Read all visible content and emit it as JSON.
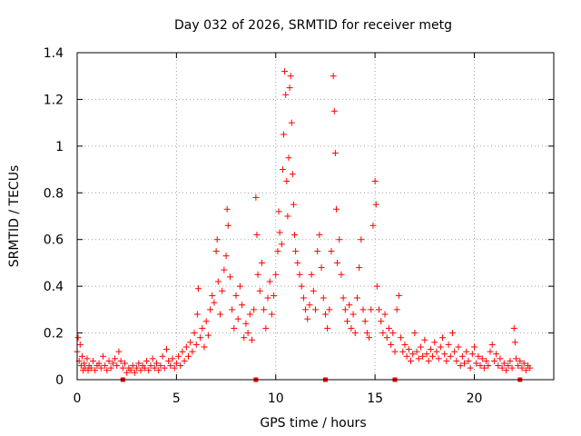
{
  "chart_data": {
    "type": "scatter",
    "title": "Day 032 of 2026, SRMTID for receiver metg",
    "xlabel": "GPS time / hours",
    "ylabel": "SRMTID / TECUs",
    "xlim": [
      0,
      24
    ],
    "ylim": [
      0,
      1.4
    ],
    "xticks": [
      0,
      5,
      10,
      15,
      20
    ],
    "xtick_labels": [
      "0",
      "5",
      "10",
      "15",
      "20"
    ],
    "yticks": [
      0,
      0.2,
      0.4,
      0.6,
      0.8,
      1.0,
      1.2,
      1.4
    ],
    "ytick_labels": [
      "0",
      "0.2",
      "0.4",
      "0.6",
      "0.8",
      "1",
      "1.2",
      "1.4"
    ],
    "grid": true,
    "marker": "plus",
    "color": "#ff0000",
    "series": [
      {
        "name": "SRMTID",
        "points": [
          [
            0.0,
            0.12
          ],
          [
            0.05,
            0.18
          ],
          [
            0.1,
            0.08
          ],
          [
            0.15,
            0.15
          ],
          [
            0.2,
            0.06
          ],
          [
            0.25,
            0.1
          ],
          [
            0.3,
            0.04
          ],
          [
            0.35,
            0.07
          ],
          [
            0.4,
            0.05
          ],
          [
            0.5,
            0.09
          ],
          [
            0.55,
            0.04
          ],
          [
            0.6,
            0.06
          ],
          [
            0.7,
            0.05
          ],
          [
            0.8,
            0.08
          ],
          [
            0.9,
            0.04
          ],
          [
            1.0,
            0.06
          ],
          [
            1.1,
            0.07
          ],
          [
            1.2,
            0.05
          ],
          [
            1.3,
            0.1
          ],
          [
            1.4,
            0.06
          ],
          [
            1.5,
            0.04
          ],
          [
            1.6,
            0.08
          ],
          [
            1.7,
            0.05
          ],
          [
            1.8,
            0.07
          ],
          [
            1.9,
            0.09
          ],
          [
            2.0,
            0.06
          ],
          [
            2.1,
            0.12
          ],
          [
            2.2,
            0.08
          ],
          [
            2.3,
            0.05
          ],
          [
            2.4,
            0.07
          ],
          [
            2.5,
            0.03
          ],
          [
            2.6,
            0.05
          ],
          [
            2.7,
            0.04
          ],
          [
            2.8,
            0.06
          ],
          [
            2.9,
            0.03
          ],
          [
            3.0,
            0.05
          ],
          [
            3.1,
            0.07
          ],
          [
            3.2,
            0.04
          ],
          [
            3.3,
            0.06
          ],
          [
            3.4,
            0.05
          ],
          [
            3.5,
            0.08
          ],
          [
            3.6,
            0.04
          ],
          [
            3.7,
            0.06
          ],
          [
            3.8,
            0.09
          ],
          [
            3.9,
            0.05
          ],
          [
            4.0,
            0.07
          ],
          [
            4.1,
            0.04
          ],
          [
            4.2,
            0.06
          ],
          [
            4.3,
            0.1
          ],
          [
            4.4,
            0.05
          ],
          [
            4.5,
            0.13
          ],
          [
            4.6,
            0.08
          ],
          [
            4.7,
            0.06
          ],
          [
            4.8,
            0.09
          ],
          [
            4.9,
            0.05
          ],
          [
            5.0,
            0.07
          ],
          [
            5.1,
            0.1
          ],
          [
            5.2,
            0.06
          ],
          [
            5.3,
            0.12
          ],
          [
            5.4,
            0.08
          ],
          [
            5.5,
            0.14
          ],
          [
            5.6,
            0.1
          ],
          [
            5.7,
            0.16
          ],
          [
            5.8,
            0.12
          ],
          [
            5.9,
            0.2
          ],
          [
            6.0,
            0.15
          ],
          [
            6.05,
            0.28
          ],
          [
            6.1,
            0.39
          ],
          [
            6.2,
            0.18
          ],
          [
            6.3,
            0.22
          ],
          [
            6.4,
            0.14
          ],
          [
            6.5,
            0.25
          ],
          [
            6.6,
            0.19
          ],
          [
            6.7,
            0.3
          ],
          [
            6.8,
            0.36
          ],
          [
            6.9,
            0.33
          ],
          [
            7.0,
            0.55
          ],
          [
            7.05,
            0.6
          ],
          [
            7.1,
            0.42
          ],
          [
            7.2,
            0.28
          ],
          [
            7.3,
            0.38
          ],
          [
            7.4,
            0.47
          ],
          [
            7.5,
            0.53
          ],
          [
            7.55,
            0.73
          ],
          [
            7.6,
            0.66
          ],
          [
            7.7,
            0.44
          ],
          [
            7.8,
            0.3
          ],
          [
            7.9,
            0.22
          ],
          [
            8.0,
            0.36
          ],
          [
            8.1,
            0.26
          ],
          [
            8.2,
            0.4
          ],
          [
            8.3,
            0.32
          ],
          [
            8.4,
            0.18
          ],
          [
            8.5,
            0.24
          ],
          [
            8.6,
            0.2
          ],
          [
            8.7,
            0.28
          ],
          [
            8.8,
            0.17
          ],
          [
            8.9,
            0.3
          ],
          [
            9.0,
            0.78
          ],
          [
            9.05,
            0.62
          ],
          [
            9.1,
            0.45
          ],
          [
            9.2,
            0.38
          ],
          [
            9.3,
            0.5
          ],
          [
            9.4,
            0.3
          ],
          [
            9.5,
            0.22
          ],
          [
            9.6,
            0.35
          ],
          [
            9.7,
            0.42
          ],
          [
            9.8,
            0.28
          ],
          [
            9.9,
            0.36
          ],
          [
            10.0,
            0.45
          ],
          [
            10.1,
            0.55
          ],
          [
            10.15,
            0.72
          ],
          [
            10.2,
            0.63
          ],
          [
            10.3,
            0.58
          ],
          [
            10.35,
            0.9
          ],
          [
            10.4,
            1.05
          ],
          [
            10.45,
            1.32
          ],
          [
            10.5,
            1.22
          ],
          [
            10.55,
            0.85
          ],
          [
            10.6,
            0.7
          ],
          [
            10.65,
            0.95
          ],
          [
            10.7,
            1.25
          ],
          [
            10.75,
            1.3
          ],
          [
            10.8,
            1.1
          ],
          [
            10.85,
            0.88
          ],
          [
            10.9,
            0.75
          ],
          [
            10.95,
            0.62
          ],
          [
            11.0,
            0.55
          ],
          [
            11.1,
            0.5
          ],
          [
            11.2,
            0.45
          ],
          [
            11.3,
            0.4
          ],
          [
            11.4,
            0.35
          ],
          [
            11.5,
            0.3
          ],
          [
            11.6,
            0.26
          ],
          [
            11.7,
            0.32
          ],
          [
            11.8,
            0.45
          ],
          [
            11.9,
            0.38
          ],
          [
            12.0,
            0.3
          ],
          [
            12.1,
            0.55
          ],
          [
            12.2,
            0.62
          ],
          [
            12.3,
            0.48
          ],
          [
            12.4,
            0.35
          ],
          [
            12.5,
            0.28
          ],
          [
            12.6,
            0.22
          ],
          [
            12.7,
            0.3
          ],
          [
            12.8,
            0.55
          ],
          [
            12.9,
            1.3
          ],
          [
            12.95,
            1.15
          ],
          [
            13.0,
            0.97
          ],
          [
            13.05,
            0.73
          ],
          [
            13.1,
            0.5
          ],
          [
            13.2,
            0.6
          ],
          [
            13.3,
            0.45
          ],
          [
            13.4,
            0.35
          ],
          [
            13.5,
            0.3
          ],
          [
            13.6,
            0.25
          ],
          [
            13.7,
            0.32
          ],
          [
            13.8,
            0.22
          ],
          [
            13.9,
            0.28
          ],
          [
            14.0,
            0.2
          ],
          [
            14.1,
            0.35
          ],
          [
            14.2,
            0.48
          ],
          [
            14.3,
            0.6
          ],
          [
            14.4,
            0.3
          ],
          [
            14.5,
            0.25
          ],
          [
            14.6,
            0.2
          ],
          [
            14.7,
            0.18
          ],
          [
            14.8,
            0.3
          ],
          [
            14.9,
            0.66
          ],
          [
            15.0,
            0.85
          ],
          [
            15.05,
            0.75
          ],
          [
            15.1,
            0.4
          ],
          [
            15.2,
            0.3
          ],
          [
            15.3,
            0.25
          ],
          [
            15.4,
            0.2
          ],
          [
            15.5,
            0.28
          ],
          [
            15.6,
            0.18
          ],
          [
            15.7,
            0.22
          ],
          [
            15.8,
            0.15
          ],
          [
            15.9,
            0.2
          ],
          [
            16.0,
            0.12
          ],
          [
            16.1,
            0.3
          ],
          [
            16.2,
            0.36
          ],
          [
            16.3,
            0.18
          ],
          [
            16.4,
            0.12
          ],
          [
            16.5,
            0.15
          ],
          [
            16.6,
            0.1
          ],
          [
            16.7,
            0.13
          ],
          [
            16.8,
            0.08
          ],
          [
            16.9,
            0.11
          ],
          [
            17.0,
            0.2
          ],
          [
            17.1,
            0.12
          ],
          [
            17.2,
            0.09
          ],
          [
            17.3,
            0.14
          ],
          [
            17.4,
            0.1
          ],
          [
            17.5,
            0.17
          ],
          [
            17.6,
            0.11
          ],
          [
            17.7,
            0.08
          ],
          [
            17.8,
            0.13
          ],
          [
            17.9,
            0.1
          ],
          [
            18.0,
            0.16
          ],
          [
            18.1,
            0.12
          ],
          [
            18.2,
            0.09
          ],
          [
            18.3,
            0.14
          ],
          [
            18.4,
            0.18
          ],
          [
            18.5,
            0.11
          ],
          [
            18.6,
            0.08
          ],
          [
            18.7,
            0.15
          ],
          [
            18.8,
            0.1
          ],
          [
            18.9,
            0.2
          ],
          [
            19.0,
            0.12
          ],
          [
            19.1,
            0.08
          ],
          [
            19.2,
            0.14
          ],
          [
            19.3,
            0.06
          ],
          [
            19.4,
            0.1
          ],
          [
            19.5,
            0.07
          ],
          [
            19.6,
            0.12
          ],
          [
            19.7,
            0.08
          ],
          [
            19.8,
            0.05
          ],
          [
            19.9,
            0.11
          ],
          [
            20.0,
            0.14
          ],
          [
            20.1,
            0.07
          ],
          [
            20.2,
            0.1
          ],
          [
            20.3,
            0.06
          ],
          [
            20.4,
            0.09
          ],
          [
            20.5,
            0.05
          ],
          [
            20.6,
            0.08
          ],
          [
            20.7,
            0.06
          ],
          [
            20.8,
            0.12
          ],
          [
            20.9,
            0.15
          ],
          [
            21.0,
            0.08
          ],
          [
            21.1,
            0.11
          ],
          [
            21.2,
            0.06
          ],
          [
            21.3,
            0.09
          ],
          [
            21.4,
            0.05
          ],
          [
            21.5,
            0.07
          ],
          [
            21.6,
            0.04
          ],
          [
            21.7,
            0.06
          ],
          [
            21.8,
            0.08
          ],
          [
            21.9,
            0.05
          ],
          [
            22.0,
            0.22
          ],
          [
            22.05,
            0.16
          ],
          [
            22.1,
            0.09
          ],
          [
            22.2,
            0.06
          ],
          [
            22.3,
            0.08
          ],
          [
            22.4,
            0.05
          ],
          [
            22.5,
            0.07
          ],
          [
            22.6,
            0.04
          ],
          [
            22.7,
            0.06
          ],
          [
            22.8,
            0.05
          ]
        ]
      }
    ],
    "baseline_markers": [
      2.3,
      9.0,
      12.5,
      16.0,
      22.3
    ]
  }
}
